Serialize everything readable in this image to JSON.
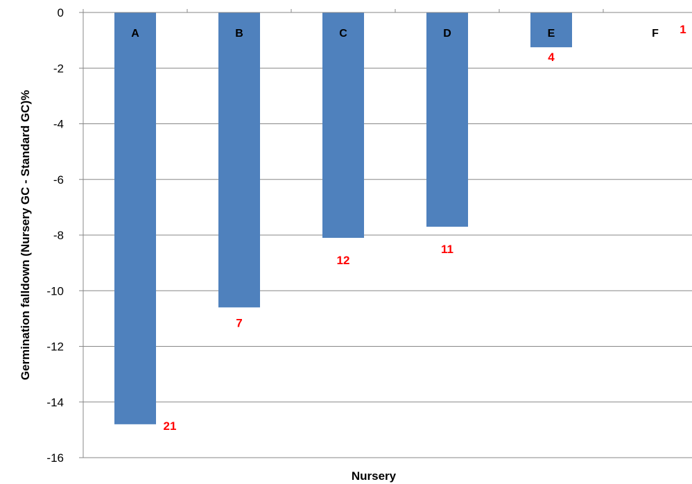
{
  "chart_data": {
    "type": "bar",
    "title": "",
    "xlabel": "Nursery",
    "ylabel": "Germination falldown (Nursery GC - Standard GC)%",
    "categories": [
      "A",
      "B",
      "C",
      "D",
      "E",
      "F"
    ],
    "values": [
      -14.8,
      -10.6,
      -8.1,
      -7.7,
      -1.25,
      0
    ],
    "data_labels": [
      "21",
      "7",
      "12",
      "11",
      "4",
      "1"
    ],
    "ylim": [
      -16,
      0
    ],
    "yticks": [
      0,
      -2,
      -4,
      -6,
      -8,
      -10,
      -12,
      -14,
      -16
    ],
    "grid": true,
    "legend": "none",
    "bar_color": "#4F81BD",
    "data_label_color": "#FF0000",
    "gridline_color": "#878787"
  }
}
